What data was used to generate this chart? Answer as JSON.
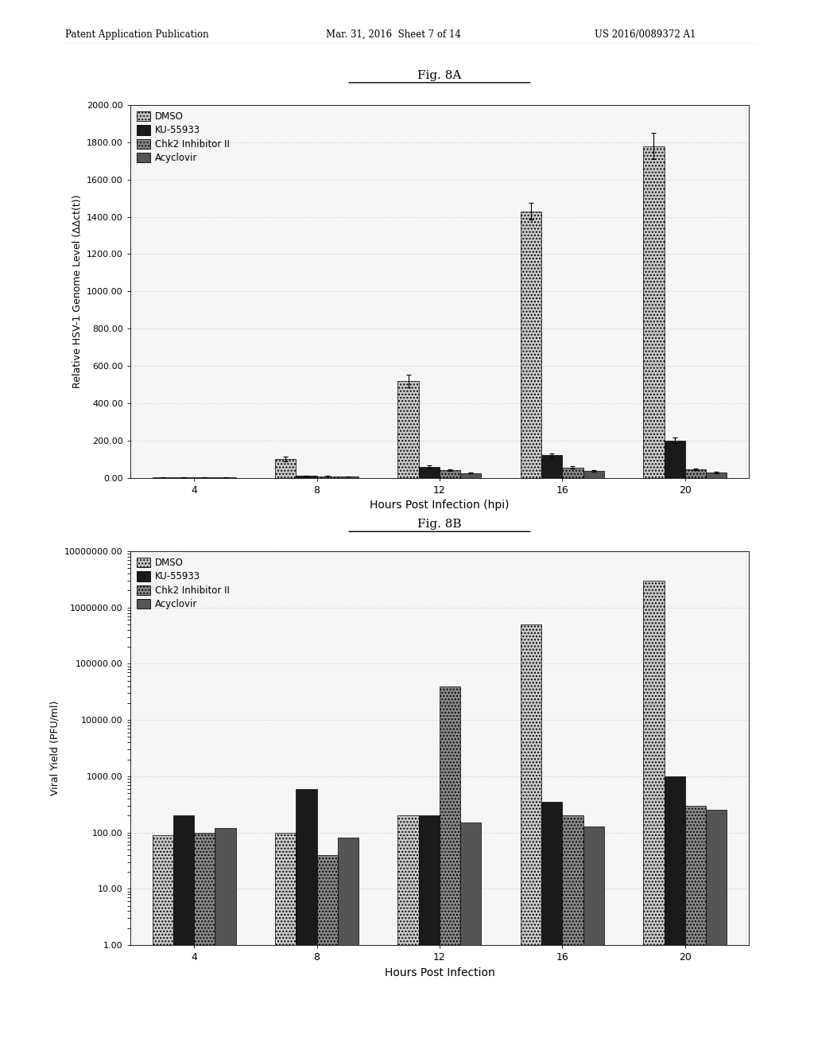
{
  "fig_a_title": "Fig. 8A",
  "fig_b_title": "Fig. 8B",
  "timepoints": [
    4,
    8,
    12,
    16,
    20
  ],
  "timepoint_labels": [
    "4",
    "8",
    "12",
    "16",
    "20"
  ],
  "legend_labels": [
    "DMSO",
    "KU-55933",
    "Chk2 Inhibitor II",
    "Acyclovir"
  ],
  "fig_a": {
    "ylabel": "Relative HSV-1 Genome Level (ΔΔct(t))",
    "xlabel": "Hours Post Infection (hpi)",
    "ylim": [
      0,
      2000
    ],
    "yticks": [
      0.0,
      200.0,
      400.0,
      600.0,
      800.0,
      1000.0,
      1200.0,
      1400.0,
      1600.0,
      1800.0,
      2000.0
    ],
    "data_dmso": [
      2,
      100,
      520,
      1430,
      1780
    ],
    "data_ku": [
      2,
      10,
      60,
      120,
      200
    ],
    "data_chk2": [
      2,
      8,
      40,
      55,
      45
    ],
    "data_acyclo": [
      2,
      6,
      25,
      35,
      30
    ],
    "err_dmso": [
      0.5,
      12,
      35,
      45,
      70
    ],
    "err_ku": [
      0.5,
      2,
      8,
      12,
      15
    ],
    "err_chk2": [
      0.5,
      1,
      5,
      7,
      5
    ],
    "err_acyclo": [
      0.5,
      1,
      3,
      4,
      4
    ]
  },
  "fig_b": {
    "ylabel": "Viral Yield (PFU/ml)",
    "xlabel": "Hours Post Infection",
    "ytick_vals": [
      1,
      10,
      100,
      1000,
      10000,
      100000,
      1000000,
      10000000
    ],
    "ytick_labels": [
      "1.00",
      "10.00",
      "100.00",
      "1000.00",
      "10000.00",
      "100000.00",
      "1000000.00",
      "10000000.00"
    ],
    "data_dmso": [
      90,
      100,
      200,
      500000,
      3000000
    ],
    "data_ku": [
      200,
      600,
      200,
      350,
      1000
    ],
    "data_chk2": [
      100,
      40,
      40000,
      200,
      300
    ],
    "data_acyclo": [
      120,
      80,
      150,
      130,
      250
    ]
  },
  "header_line1": "Patent Application Publication",
  "header_line2": "Mar. 31, 2016  Sheet 7 of 14",
  "header_line3": "US 2016/0089372 A1",
  "bar_colors": [
    "#c8c8c8",
    "#1a1a1a",
    "#888888",
    "#555555"
  ],
  "bar_hatches": [
    "....",
    "",
    "....",
    ""
  ],
  "bar_width": 0.17,
  "bg_color": "#f5f5f5"
}
